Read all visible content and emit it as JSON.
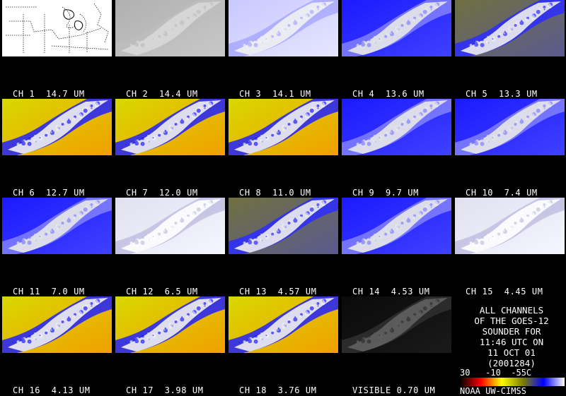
{
  "panels": [
    {
      "label": "CH 1  14.7 UM",
      "style": "map"
    },
    {
      "label": "CH 2  14.4 UM",
      "style": "gray"
    },
    {
      "label": "CH 3  14.1 UM",
      "style": "paleblue"
    },
    {
      "label": "CH 4  13.6 UM",
      "style": "blue"
    },
    {
      "label": "CH 5  13.3 UM",
      "style": "olive"
    },
    {
      "label": "CH 6  12.7 UM",
      "style": "yellow"
    },
    {
      "label": "CH 7  12.0 UM",
      "style": "yellow"
    },
    {
      "label": "CH 8  11.0 UM",
      "style": "yellow"
    },
    {
      "label": "CH 9  9.7 UM",
      "style": "blue"
    },
    {
      "label": "CH 10  7.4 UM",
      "style": "blue"
    },
    {
      "label": "CH 11  7.0 UM",
      "style": "blue"
    },
    {
      "label": "CH 12  6.5 UM",
      "style": "white"
    },
    {
      "label": "CH 13  4.57 UM",
      "style": "olive"
    },
    {
      "label": "CH 14  4.53 UM",
      "style": "blue"
    },
    {
      "label": "CH 15  4.45 UM",
      "style": "white"
    },
    {
      "label": "CH 16  4.13 UM",
      "style": "yellow"
    },
    {
      "label": "CH 17  3.98 UM",
      "style": "yellow"
    },
    {
      "label": "CH 18  3.76 UM",
      "style": "yellow"
    },
    {
      "label": "VISIBLE 0.70 UM",
      "style": "dark"
    }
  ],
  "info": {
    "text": "ALL CHANNELS\nOF THE GOES-12\nSOUNDER FOR\n11:46 UTC ON\n11 OCT 01\n(2001284)"
  },
  "scale": {
    "labels": "30   -10  -55C",
    "colors": [
      "#000000",
      "#ff0000",
      "#ffff00",
      "#808000",
      "#0000ff",
      "#ffffff"
    ]
  },
  "credit": "NOAA UW-CIMSS"
}
